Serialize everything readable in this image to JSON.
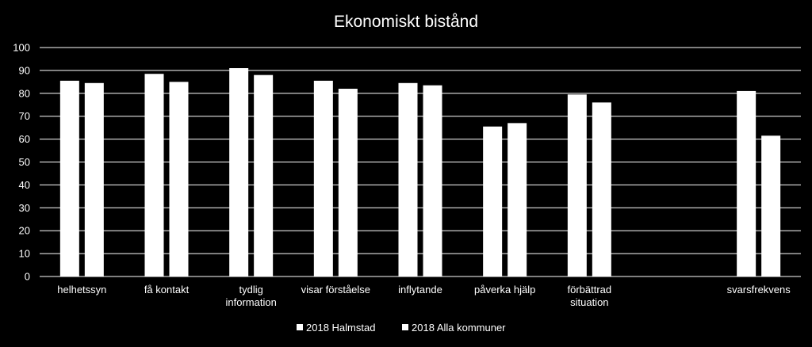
{
  "chart_data": {
    "type": "bar",
    "title": "Ekonomiskt bistånd",
    "xlabel": "",
    "ylabel": "",
    "ylim": [
      0,
      100
    ],
    "yticks": [
      0,
      10,
      20,
      30,
      40,
      50,
      60,
      70,
      80,
      90,
      100
    ],
    "grid": true,
    "legend_position": "bottom",
    "categories": [
      [
        "helhetssyn"
      ],
      [
        "få kontakt"
      ],
      [
        "tydlig",
        "information"
      ],
      [
        "visar förståelse"
      ],
      [
        "inflytande"
      ],
      [
        "påverka hjälp"
      ],
      [
        "förbättrad",
        "situation"
      ],
      [
        ""
      ],
      [
        "svarsfrekvens"
      ]
    ],
    "series": [
      {
        "name": "2018 Halmstad",
        "values": [
          85.5,
          88.5,
          91,
          85.5,
          84.5,
          65.5,
          79.5,
          null,
          81
        ],
        "color": "#ffffff"
      },
      {
        "name": "2018 Alla kommuner",
        "values": [
          84.5,
          85,
          88,
          82,
          83.5,
          67,
          76,
          null,
          61.5
        ],
        "color": "#ffffff"
      }
    ]
  }
}
